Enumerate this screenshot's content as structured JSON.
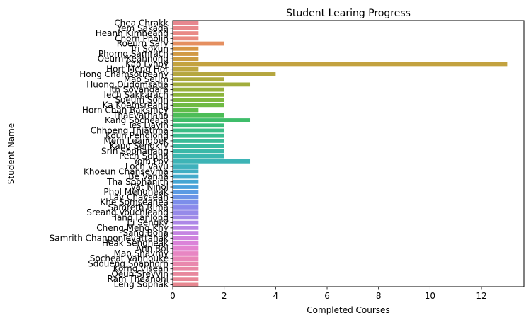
{
  "chart_data": {
    "type": "bar",
    "orientation": "horizontal",
    "title": "Student Learing Progress",
    "xlabel": "Completed Courses",
    "ylabel": "Student Name",
    "xlim": [
      0,
      13.65
    ],
    "xticks": [
      0,
      2,
      4,
      6,
      8,
      10,
      12
    ],
    "grid": false,
    "categories": [
      "Chea Chrakk",
      "Yem Sakada",
      "Heanh Kimheang",
      "Chorn Pholin",
      "Roeurn Sary",
      "Tri Sokun",
      "Phorng Samrach",
      "Oeurn Keahnong",
      "Kao Lynoy",
      "Hort Meng Hor",
      "Hong Chamsotheany",
      "Mao Seum",
      "Huong Oudomsatia",
      "Ith Sovandara",
      "Iech Sakkarach",
      "Soeum Sohn",
      "Ka Koemsreang",
      "Horn Chan Raksmey",
      "ThaEvathana",
      "Kang Socheata",
      "Tes Dayin",
      "Chhoeng Thiathna",
      "Koun Penglong",
      "Mem Leangbek",
      "Kang Sengkry",
      "Srin Sophanang",
      "Pech Sopha",
      "Yom Pov",
      "Loch Vayu",
      "Khoeun Chansevma",
      "Be Vanna",
      "Tha Sophanith",
      "Vat Ninol",
      "Phol Mengheak",
      "Lay Chavsean",
      "Khe Somseanea",
      "Samreth Rima",
      "Sreang Vouchleang",
      "Tang Fanlong",
      "Ei Sengky",
      "Cheng Meng Khy",
      "Sang Bona",
      "Samrith Chanponlevattanak",
      "Heak Sengheak",
      "Ann Bol",
      "Mao Shavmy",
      "Socheat Vannouke",
      "Sdoueng Soaphorn",
      "Korng Visean",
      "Oeun Sreyvin",
      "Ram Theanoni",
      "Leng Sophak"
    ],
    "values": [
      1,
      1,
      1,
      1,
      2,
      1,
      1,
      1,
      13,
      1,
      4,
      2,
      3,
      2,
      2,
      2,
      2,
      1,
      2,
      3,
      2,
      2,
      2,
      2,
      2,
      2,
      2,
      3,
      1,
      1,
      1,
      1,
      1,
      1,
      1,
      1,
      1,
      1,
      1,
      1,
      1,
      1,
      1,
      1,
      1,
      1,
      1,
      1,
      1,
      1,
      1,
      1
    ],
    "colors": [
      "#e7878f",
      "#e8888b",
      "#e98986",
      "#e98a80",
      "#e58f60",
      "#d69645",
      "#d19a45",
      "#cb9d42",
      "#c3a23f",
      "#bda63f",
      "#b5a63e",
      "#acaa3e",
      "#a2ad3c",
      "#97b13b",
      "#8cb43c",
      "#7fb83e",
      "#6fba43",
      "#5fbc4a",
      "#4cbd57",
      "#3fbd6a",
      "#3bbd7a",
      "#3abd86",
      "#3abc90",
      "#3abb98",
      "#3ab9a0",
      "#3ab8a8",
      "#3bb6af",
      "#3db4b6",
      "#3fb1bc",
      "#41aec3",
      "#43aacb",
      "#45a6d3",
      "#4aa1dc",
      "#5a9be3",
      "#6c94e7",
      "#7c8eea",
      "#8a8aeb",
      "#968ae9",
      "#a18ae8",
      "#ad88e7",
      "#b987e5",
      "#c585e2",
      "#d083de",
      "#db83d9",
      "#e485d0",
      "#e886c3",
      "#e987b8",
      "#e988ad",
      "#e888a4",
      "#e8879c",
      "#e88796",
      "#e78790"
    ]
  }
}
